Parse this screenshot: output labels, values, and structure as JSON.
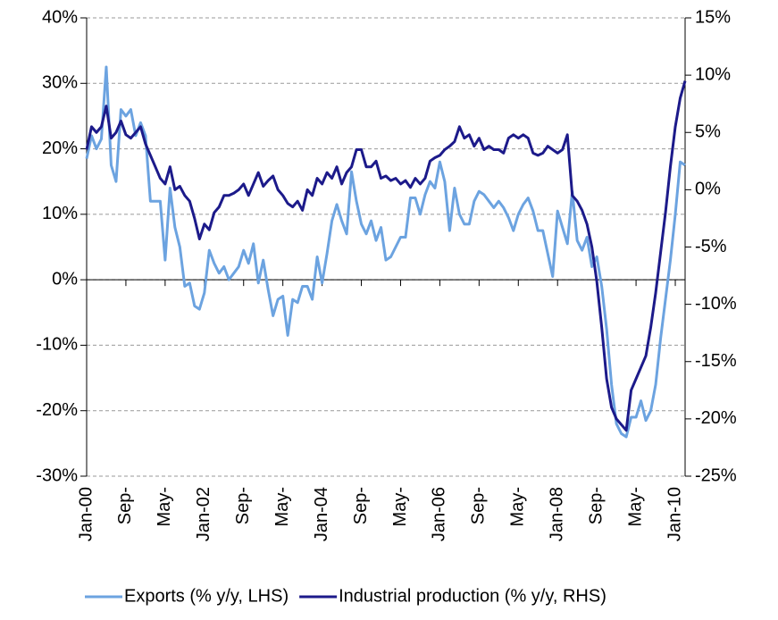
{
  "chart_data": {
    "type": "line",
    "categories": [
      "Jan-00",
      null,
      null,
      null,
      null,
      null,
      null,
      null,
      "Sep-",
      null,
      null,
      null,
      null,
      null,
      null,
      null,
      "May-",
      null,
      null,
      null,
      null,
      null,
      null,
      null,
      "Jan-02",
      null,
      null,
      null,
      null,
      null,
      null,
      null,
      "Sep-",
      null,
      null,
      null,
      null,
      null,
      null,
      null,
      "May-",
      null,
      null,
      null,
      null,
      null,
      null,
      null,
      "Jan-04",
      null,
      null,
      null,
      null,
      null,
      null,
      null,
      "Sep-",
      null,
      null,
      null,
      null,
      null,
      null,
      null,
      "May-",
      null,
      null,
      null,
      null,
      null,
      null,
      null,
      "Jan-06",
      null,
      null,
      null,
      null,
      null,
      null,
      null,
      "Sep-",
      null,
      null,
      null,
      null,
      null,
      null,
      null,
      "May-",
      null,
      null,
      null,
      null,
      null,
      null,
      null,
      "Jan-08",
      null,
      null,
      null,
      null,
      null,
      null,
      null,
      "Sep-",
      null,
      null,
      null,
      null,
      null,
      null,
      null,
      "May-",
      null,
      null,
      null,
      null,
      null,
      null,
      null,
      "Jan-10",
      null,
      null
    ],
    "series": [
      {
        "name": "Exports (% y/y, LHS)",
        "color": "#6ca3e0",
        "axis": "y",
        "values": [
          18.5,
          22,
          20,
          21.5,
          32.5,
          17.5,
          15,
          26,
          25,
          26,
          22,
          24,
          22,
          12,
          12,
          12,
          3,
          14,
          8,
          5,
          -1,
          -0.5,
          -4,
          -4.5,
          -2,
          4.5,
          2.5,
          1,
          2,
          0,
          1,
          2,
          4.5,
          2.5,
          5.5,
          -0.5,
          3,
          -1.5,
          -5.5,
          -3,
          -2.5,
          -8.5,
          -3,
          -3.5,
          -1,
          -1,
          -3,
          3.5,
          -0.5,
          4,
          9,
          11.5,
          9,
          7,
          16.5,
          12,
          8.5,
          7,
          9,
          6,
          8,
          3,
          3.5,
          5,
          6.5,
          6.5,
          12.5,
          12.5,
          10,
          13,
          15,
          14,
          18,
          15,
          7.5,
          14,
          10,
          8.5,
          8.5,
          12,
          13.5,
          13,
          12,
          11,
          12,
          11,
          9.5,
          7.5,
          10,
          11.5,
          12.5,
          10.5,
          7.5,
          7.5,
          4,
          0.5,
          10.5,
          8,
          5.5,
          13.5,
          6,
          4.5,
          6.5,
          2,
          3.5,
          -1,
          -7.5,
          -16,
          -22,
          -23.5,
          -24,
          -21,
          -21,
          -18.5,
          -21.5,
          -20,
          -16,
          -9,
          -3,
          3,
          10,
          18,
          17.5
        ]
      },
      {
        "name": "Industrial production (% y/y, RHS)",
        "color": "#1c1a8a",
        "axis": "y2",
        "values": [
          3.5,
          5.5,
          5,
          5.5,
          7.3,
          4.5,
          5,
          6,
          4.8,
          4.5,
          5,
          5.5,
          4,
          3,
          2,
          1,
          0.5,
          2,
          0,
          0.3,
          -0.5,
          -1,
          -2.5,
          -4.3,
          -3,
          -3.5,
          -2,
          -1.5,
          -0.5,
          -0.5,
          -0.3,
          0,
          0.5,
          -0.5,
          0.5,
          1.5,
          0.3,
          0.8,
          1.2,
          0,
          -0.5,
          -1.2,
          -1.5,
          -1,
          -1.8,
          0,
          -0.5,
          1,
          0.5,
          1.5,
          1,
          2,
          0.5,
          1.5,
          2,
          3.5,
          3.5,
          2,
          2,
          2.5,
          1,
          1.2,
          0.8,
          1,
          0.5,
          0.8,
          0.2,
          1,
          0.5,
          1,
          2.5,
          2.8,
          3,
          3.5,
          3.8,
          4.2,
          5.5,
          4.5,
          4.8,
          3.8,
          4.5,
          3.5,
          3.8,
          3.5,
          3.5,
          3.2,
          4.5,
          4.8,
          4.5,
          4.8,
          4.5,
          3.2,
          3,
          3.2,
          3.8,
          3.5,
          3.2,
          3.5,
          4.8,
          -0.5,
          -1,
          -1.8,
          -3,
          -5,
          -8,
          -12,
          -16.5,
          -19,
          -20,
          -20.5,
          -21,
          -17.5,
          -16.5,
          -15.5,
          -14.5,
          -12,
          -9,
          -5.5,
          -2,
          2,
          5.5,
          8,
          9.5
        ]
      }
    ],
    "ylim": [
      -30,
      40
    ],
    "yticks": [
      {
        "value": -30,
        "label": "-30%"
      },
      {
        "value": -20,
        "label": "-20%"
      },
      {
        "value": -10,
        "label": "-10%"
      },
      {
        "value": 0,
        "label": "0%"
      },
      {
        "value": 10,
        "label": "10%"
      },
      {
        "value": 20,
        "label": "20%"
      },
      {
        "value": 30,
        "label": "30%"
      },
      {
        "value": 40,
        "label": "40%"
      }
    ],
    "y2lim": [
      -25,
      15
    ],
    "y2ticks": [
      {
        "value": -25,
        "label": "-25%"
      },
      {
        "value": -20,
        "label": "-20%"
      },
      {
        "value": -15,
        "label": "-15%"
      },
      {
        "value": -10,
        "label": "-10%"
      },
      {
        "value": -5,
        "label": "-5%"
      },
      {
        "value": 0,
        "label": "0%"
      },
      {
        "value": 5,
        "label": "5%"
      },
      {
        "value": 10,
        "label": "10%"
      },
      {
        "value": 15,
        "label": "15%"
      }
    ],
    "grid": true,
    "legend": "bottom"
  }
}
